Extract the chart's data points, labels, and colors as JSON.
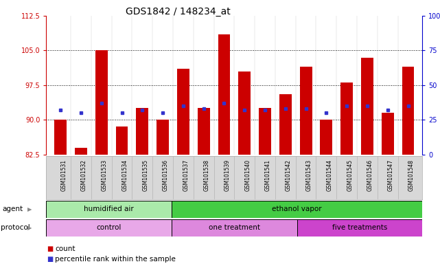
{
  "title": "GDS1842 / 148234_at",
  "samples": [
    "GSM101531",
    "GSM101532",
    "GSM101533",
    "GSM101534",
    "GSM101535",
    "GSM101536",
    "GSM101537",
    "GSM101538",
    "GSM101539",
    "GSM101540",
    "GSM101541",
    "GSM101542",
    "GSM101543",
    "GSM101544",
    "GSM101545",
    "GSM101546",
    "GSM101547",
    "GSM101548"
  ],
  "bar_values": [
    90.0,
    84.0,
    105.0,
    88.5,
    92.5,
    90.0,
    101.0,
    92.5,
    108.5,
    100.5,
    92.5,
    95.5,
    101.5,
    90.0,
    98.0,
    103.5,
    91.5,
    101.5
  ],
  "percentile_values": [
    32,
    30,
    37,
    30,
    32,
    30,
    35,
    33,
    37,
    32,
    32,
    33,
    33,
    30,
    35,
    35,
    32,
    35
  ],
  "bar_color": "#cc0000",
  "percentile_color": "#3333cc",
  "ylim_left": [
    82.5,
    112.5
  ],
  "ylim_right": [
    0,
    100
  ],
  "yticks_left": [
    82.5,
    90.0,
    97.5,
    105.0,
    112.5
  ],
  "yticks_right": [
    0,
    25,
    50,
    75,
    100
  ],
  "agent_groups": [
    {
      "label": "humidified air",
      "start": 0,
      "end": 6,
      "color": "#aaeaaa"
    },
    {
      "label": "ethanol vapor",
      "start": 6,
      "end": 18,
      "color": "#44cc44"
    }
  ],
  "protocol_groups": [
    {
      "label": "control",
      "start": 0,
      "end": 6,
      "color": "#e8a8e8"
    },
    {
      "label": "one treatment",
      "start": 6,
      "end": 12,
      "color": "#dd88dd"
    },
    {
      "label": "five treatments",
      "start": 12,
      "end": 18,
      "color": "#cc44cc"
    }
  ],
  "bar_width": 0.6,
  "left_label_color": "#cc0000",
  "right_label_color": "#0000cc",
  "title_fontsize": 10,
  "tick_fontsize": 7,
  "sample_fontsize": 5.5,
  "label_fontsize": 7.5,
  "legend_fontsize": 7.5
}
